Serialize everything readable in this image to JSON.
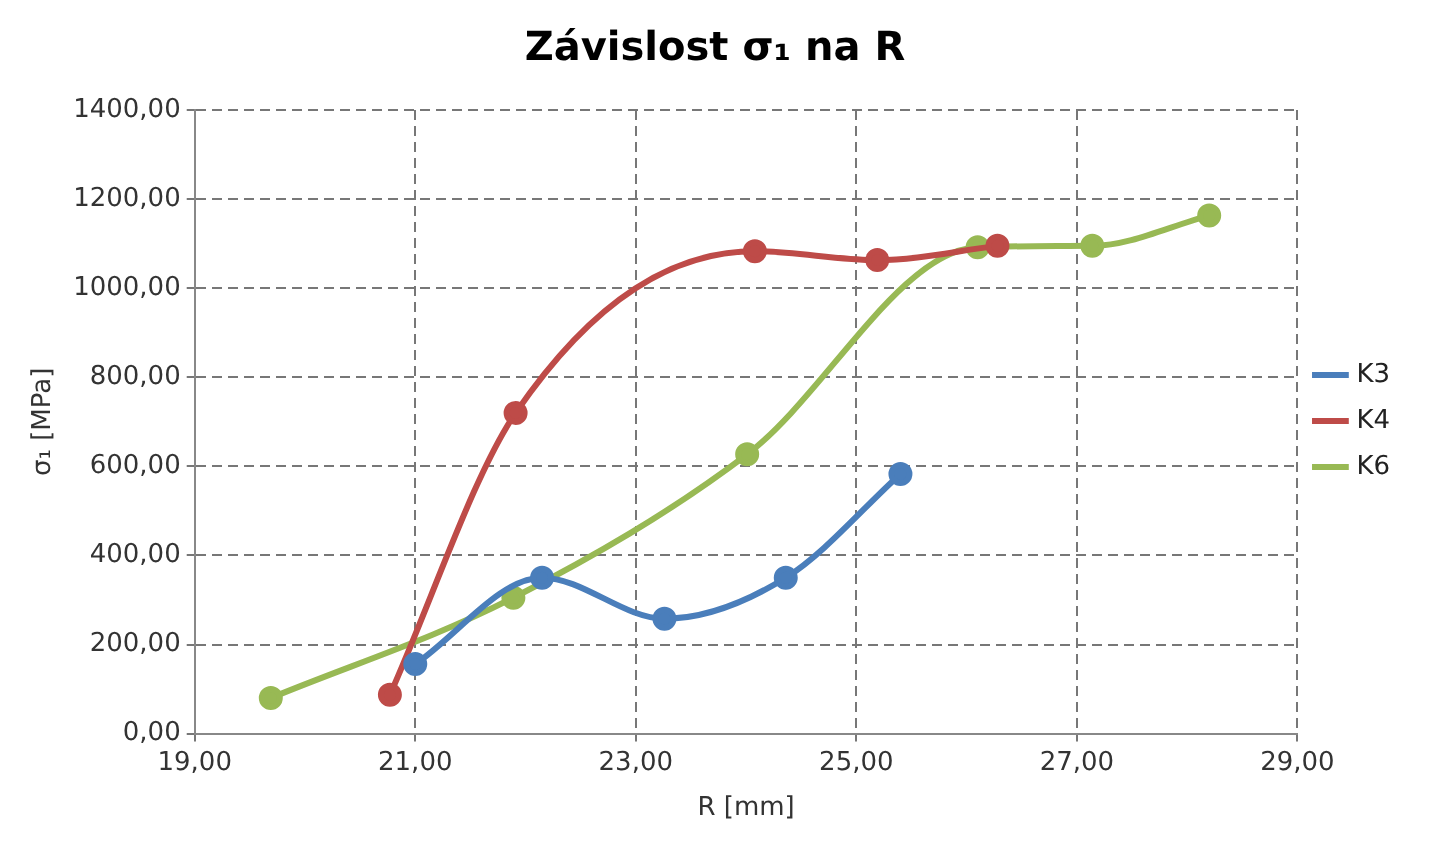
{
  "chart_data": {
    "type": "line",
    "title": "Závislost σ₁ na R",
    "xlabel": "R [mm]",
    "ylabel": "σ₁ [MPa]",
    "xlim": [
      19,
      29
    ],
    "xticks": [
      {
        "value": 19,
        "label": "19,00"
      },
      {
        "value": 21,
        "label": "21,00"
      },
      {
        "value": 23,
        "label": "23,00"
      },
      {
        "value": 25,
        "label": "25,00"
      },
      {
        "value": 27,
        "label": "27,00"
      },
      {
        "value": 29,
        "label": "29,00"
      }
    ],
    "ylim": [
      0,
      1400
    ],
    "yticks": [
      {
        "value": 0,
        "label": "0,00"
      },
      {
        "value": 200,
        "label": "200,00"
      },
      {
        "value": 400,
        "label": "400,00"
      },
      {
        "value": 600,
        "label": "600,00"
      },
      {
        "value": 800,
        "label": "800,00"
      },
      {
        "value": 1000,
        "label": "1000,00"
      },
      {
        "value": 1200,
        "label": "1200,00"
      },
      {
        "value": 1400,
        "label": "1400,00"
      }
    ],
    "grid": true,
    "legend": "right",
    "marker": "circle",
    "line_style": "solid",
    "series": [
      {
        "name": "K3",
        "color": "#4a7ebb",
        "x": [
          21.0,
          22.15,
          23.26,
          24.36,
          25.4
        ],
        "values": [
          156,
          350,
          258,
          350,
          583
        ]
      },
      {
        "name": "K4",
        "color": "#be4b48",
        "x": [
          20.77,
          21.91,
          24.08,
          25.19,
          26.28
        ],
        "values": [
          87,
          720,
          1083,
          1063,
          1095
        ]
      },
      {
        "name": "K6",
        "color": "#98b954",
        "x": [
          19.69,
          21.89,
          24.01,
          26.1,
          27.14,
          28.2
        ],
        "values": [
          80,
          305,
          627,
          1092,
          1095,
          1163
        ]
      }
    ]
  }
}
